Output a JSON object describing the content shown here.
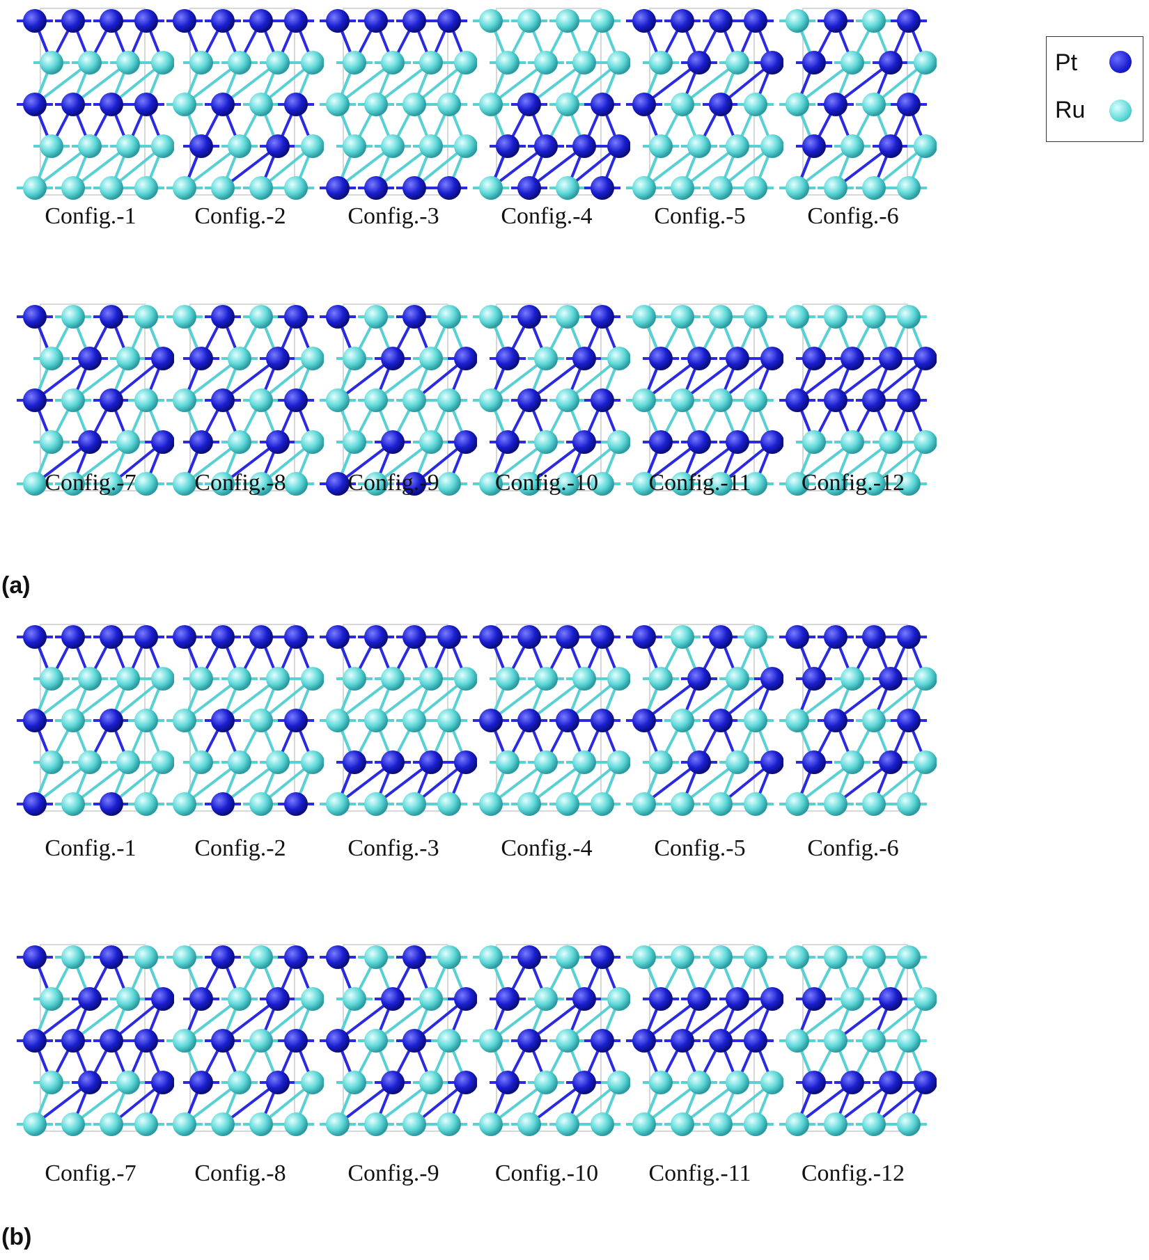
{
  "colors": {
    "pt": "#1a1fd0",
    "ru": "#5fd8d8",
    "pt_bond": "#2a2ae0",
    "ru_bond": "#58d0d4"
  },
  "legend": {
    "pt_label": "Pt",
    "ru_label": "Ru"
  },
  "panels": [
    {
      "label": "(a)",
      "configs": [
        {
          "caption": "Config.-1",
          "layers": [
            "pt",
            "ru",
            "pt",
            "ru",
            "ru"
          ]
        },
        {
          "caption": "Config.-2",
          "layers": [
            "pt",
            "ru",
            "mix",
            "mix",
            "ru"
          ]
        },
        {
          "caption": "Config.-3",
          "layers": [
            "pt",
            "ru",
            "ru",
            "ru",
            "pt"
          ]
        },
        {
          "caption": "Config.-4",
          "layers": [
            "ru",
            "ru",
            "mix",
            "pt",
            "mix"
          ]
        },
        {
          "caption": "Config.-5",
          "layers": [
            "pt",
            "mix",
            "mix",
            "ru",
            "ru"
          ]
        },
        {
          "caption": "Config.-6",
          "layers": [
            "mix",
            "mix",
            "mix",
            "mix",
            "ru"
          ]
        },
        {
          "caption": "Config.-7",
          "layers": [
            "mix",
            "mix",
            "mix",
            "mix",
            "ru"
          ]
        },
        {
          "caption": "Config.-8",
          "layers": [
            "mix",
            "mix",
            "mix",
            "mix",
            "ru"
          ]
        },
        {
          "caption": "Config.-9",
          "layers": [
            "mix",
            "mix",
            "ru",
            "mix",
            "mix"
          ]
        },
        {
          "caption": "Config.-10",
          "layers": [
            "mix",
            "mix",
            "mix",
            "mix",
            "ru"
          ]
        },
        {
          "caption": "Config.-11",
          "layers": [
            "ru",
            "pt",
            "ru",
            "pt",
            "ru"
          ]
        },
        {
          "caption": "Config.-12",
          "layers": [
            "ru",
            "pt",
            "pt",
            "ru",
            "ru"
          ]
        }
      ]
    },
    {
      "label": "(b)",
      "configs": [
        {
          "caption": "Config.-1",
          "layers": [
            "pt",
            "ru",
            "mix",
            "ru",
            "mix"
          ]
        },
        {
          "caption": "Config.-2",
          "layers": [
            "pt",
            "ru",
            "mix",
            "ru",
            "mix"
          ]
        },
        {
          "caption": "Config.-3",
          "layers": [
            "pt",
            "ru",
            "ru",
            "pt",
            "ru"
          ]
        },
        {
          "caption": "Config.-4",
          "layers": [
            "pt",
            "ru",
            "pt",
            "ru",
            "ru"
          ]
        },
        {
          "caption": "Config.-5",
          "layers": [
            "mix",
            "mix",
            "mix",
            "mix",
            "ru"
          ]
        },
        {
          "caption": "Config.-6",
          "layers": [
            "pt",
            "mix",
            "mix",
            "mix",
            "ru"
          ]
        },
        {
          "caption": "Config.-7",
          "layers": [
            "mix",
            "mix",
            "pt",
            "mix",
            "ru"
          ]
        },
        {
          "caption": "Config.-8",
          "layers": [
            "mix",
            "mix",
            "mix",
            "mix",
            "ru"
          ]
        },
        {
          "caption": "Config.-9",
          "layers": [
            "mix",
            "mix",
            "mix",
            "mix",
            "ru"
          ]
        },
        {
          "caption": "Config.-10",
          "layers": [
            "mix",
            "mix",
            "mix",
            "mix",
            "ru"
          ]
        },
        {
          "caption": "Config.-11",
          "layers": [
            "ru",
            "pt",
            "pt",
            "ru",
            "ru"
          ]
        },
        {
          "caption": "Config.-12",
          "layers": [
            "ru",
            "mix",
            "ru",
            "pt",
            "ru"
          ]
        }
      ]
    }
  ]
}
